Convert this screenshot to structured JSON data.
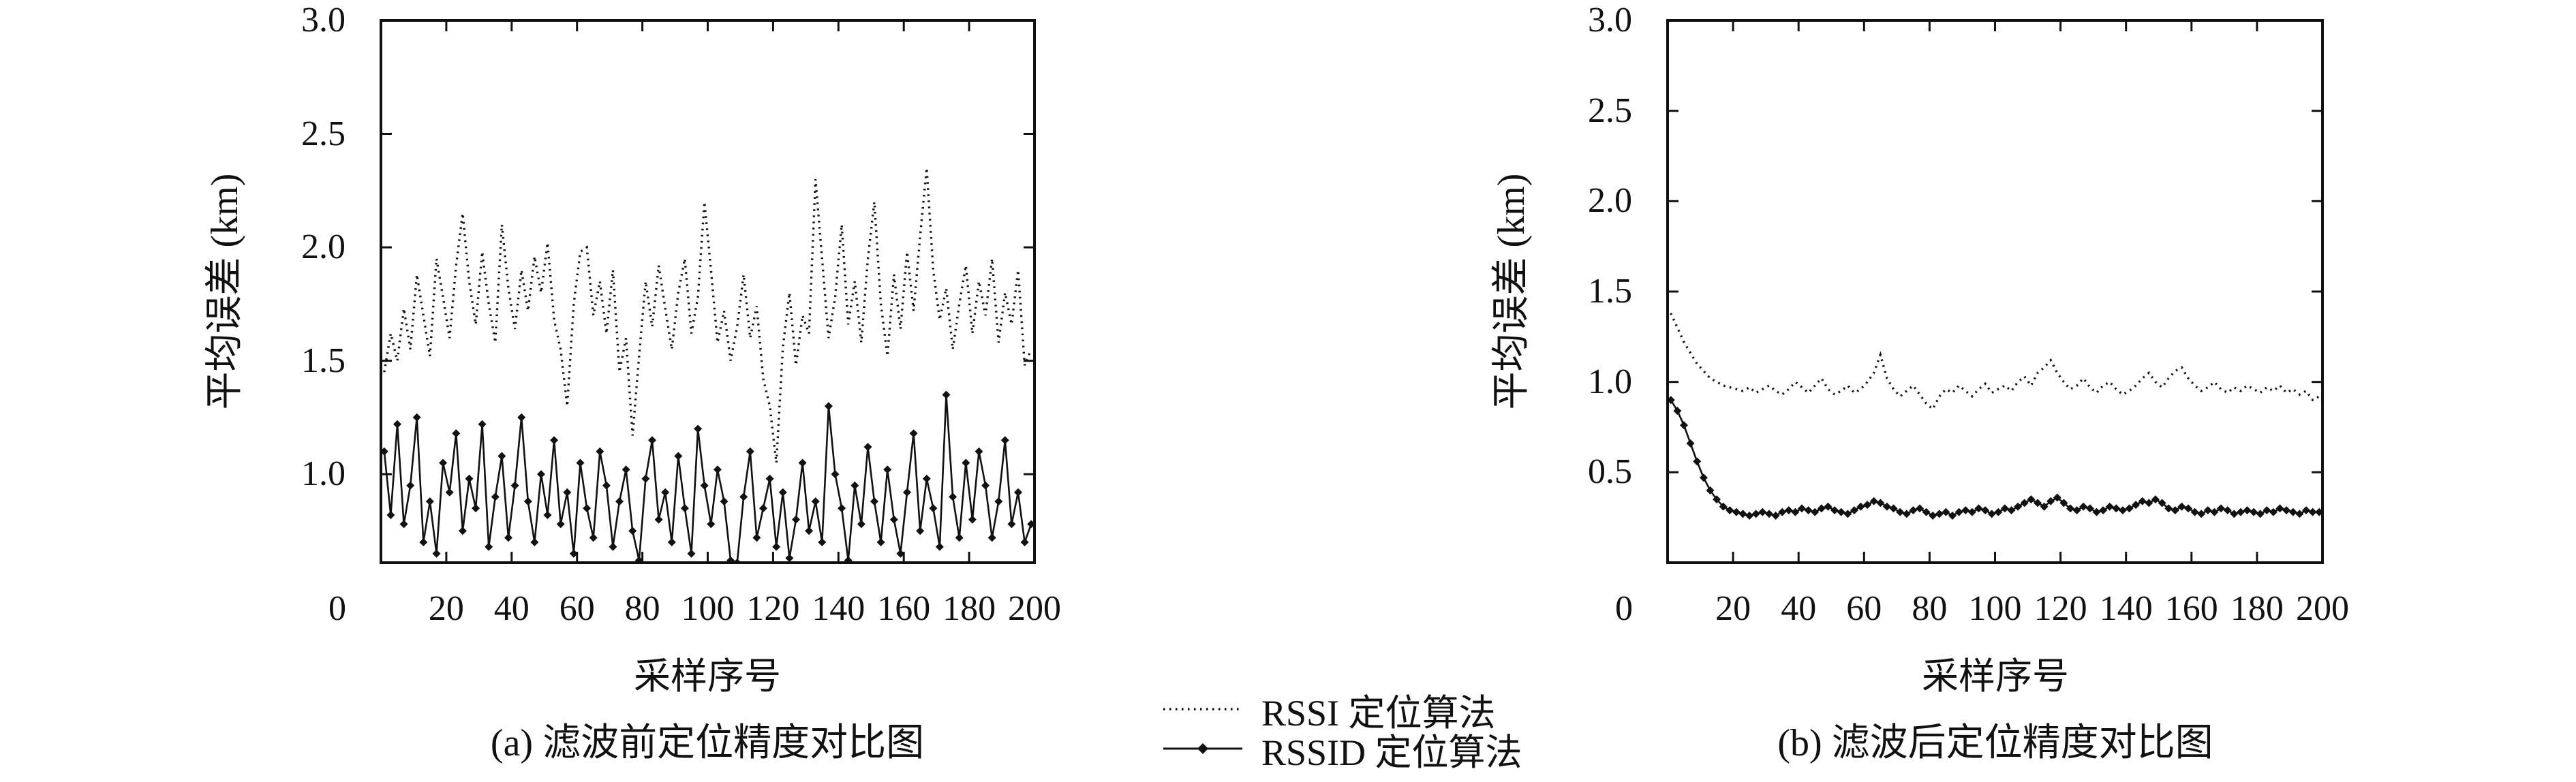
{
  "figure": {
    "background": "#ffffff",
    "line_color": "#111111",
    "legend": [
      {
        "label": "RSSI 定位算法",
        "style": "dotted"
      },
      {
        "label": "RSSID 定位算法",
        "style": "solid-diamond"
      }
    ]
  },
  "chart_data": [
    {
      "type": "line",
      "title": "(a) 滤波前定位精度对比图",
      "xlabel": "采样序号",
      "ylabel": "平均误差 (km)",
      "xlim": [
        0,
        200
      ],
      "ylim": [
        0.61,
        3.0
      ],
      "x_ticks": [
        0,
        20,
        40,
        60,
        80,
        100,
        120,
        140,
        160,
        180,
        200
      ],
      "y_ticks": [
        "1.0",
        "1.5",
        "2.0",
        "2.5",
        "3.0"
      ],
      "grid": false,
      "legend_position": "bottom-center-shared",
      "x_start": 1,
      "x_step": 2,
      "series": [
        {
          "name": "RSSI 定位算法",
          "style": "dotted",
          "marker": "none",
          "values": [
            1.45,
            1.62,
            1.5,
            1.73,
            1.55,
            1.88,
            1.7,
            1.52,
            1.95,
            1.78,
            1.6,
            1.92,
            2.15,
            1.85,
            1.66,
            1.98,
            1.75,
            1.58,
            2.1,
            1.82,
            1.64,
            1.9,
            1.72,
            1.96,
            1.8,
            2.02,
            1.68,
            1.55,
            1.3,
            1.75,
            1.98,
            2.0,
            1.7,
            1.85,
            1.62,
            1.9,
            1.45,
            1.6,
            1.17,
            1.52,
            1.85,
            1.65,
            1.92,
            1.73,
            1.55,
            1.8,
            1.95,
            1.62,
            1.78,
            2.2,
            1.9,
            1.58,
            1.72,
            1.5,
            1.65,
            1.88,
            1.6,
            1.74,
            1.42,
            1.3,
            1.05,
            1.56,
            1.8,
            1.48,
            1.7,
            1.62,
            2.3,
            1.95,
            1.6,
            1.78,
            2.1,
            1.66,
            1.85,
            1.58,
            1.95,
            2.2,
            1.75,
            1.52,
            1.88,
            1.64,
            1.98,
            1.72,
            2.05,
            2.35,
            1.9,
            1.68,
            1.82,
            1.55,
            1.75,
            1.92,
            1.62,
            1.85,
            1.7,
            1.95,
            1.58,
            1.8,
            1.66,
            1.9,
            1.48,
            1.55
          ]
        },
        {
          "name": "RSSID 定位算法",
          "style": "solid",
          "marker": "diamond",
          "values": [
            1.1,
            0.82,
            1.22,
            0.78,
            0.95,
            1.25,
            0.7,
            0.88,
            0.65,
            1.05,
            0.92,
            1.18,
            0.75,
            0.98,
            0.85,
            1.22,
            0.68,
            0.9,
            1.08,
            0.72,
            0.95,
            1.25,
            0.88,
            0.7,
            1.0,
            0.82,
            1.15,
            0.78,
            0.92,
            0.65,
            1.05,
            0.85,
            0.72,
            1.1,
            0.95,
            0.68,
            0.88,
            1.02,
            0.75,
            0.62,
            0.98,
            1.15,
            0.8,
            0.92,
            0.7,
            1.08,
            0.85,
            0.65,
            1.2,
            0.95,
            0.78,
            1.02,
            0.88,
            0.62,
            0.61,
            0.9,
            1.1,
            0.72,
            0.85,
            0.98,
            0.68,
            0.92,
            0.63,
            0.8,
            1.05,
            0.75,
            0.88,
            0.7,
            1.3,
            1.0,
            0.85,
            0.62,
            0.95,
            0.78,
            1.12,
            0.88,
            0.7,
            1.02,
            0.8,
            0.65,
            0.92,
            1.18,
            0.75,
            0.98,
            0.85,
            0.68,
            1.35,
            0.9,
            0.72,
            1.05,
            0.8,
            1.1,
            0.95,
            0.72,
            0.88,
            1.15,
            0.78,
            0.92,
            0.7,
            0.78
          ]
        }
      ]
    },
    {
      "type": "line",
      "title": "(b) 滤波后定位精度对比图",
      "xlabel": "采样序号",
      "ylabel": "平均误差 (km)",
      "xlim": [
        0,
        200
      ],
      "ylim": [
        0.0,
        3.0
      ],
      "x_ticks": [
        0,
        20,
        40,
        60,
        80,
        100,
        120,
        140,
        160,
        180,
        200
      ],
      "y_ticks": [
        "0.5",
        "1.0",
        "1.5",
        "2.0",
        "2.5",
        "3.0"
      ],
      "grid": false,
      "legend_position": "bottom-center-shared",
      "x_start": 1,
      "x_step": 2,
      "series": [
        {
          "name": "RSSI 定位算法",
          "style": "dotted",
          "marker": "none",
          "values": [
            1.38,
            1.3,
            1.22,
            1.16,
            1.1,
            1.06,
            1.02,
            1.0,
            0.98,
            0.97,
            0.96,
            0.95,
            0.97,
            0.94,
            0.96,
            0.98,
            0.95,
            0.93,
            0.96,
            1.0,
            0.97,
            0.94,
            0.98,
            1.02,
            0.96,
            0.93,
            0.95,
            0.98,
            0.94,
            0.96,
            1.0,
            1.05,
            1.15,
            1.02,
            0.96,
            0.92,
            0.95,
            0.98,
            0.93,
            0.88,
            0.85,
            0.92,
            0.96,
            0.94,
            0.98,
            0.95,
            0.92,
            0.96,
            0.99,
            0.94,
            0.96,
            0.98,
            0.95,
            1.0,
            1.03,
            0.98,
            1.05,
            1.08,
            1.12,
            1.05,
            1.0,
            0.96,
            0.98,
            1.02,
            0.97,
            0.94,
            0.98,
            1.0,
            0.96,
            0.93,
            0.95,
            0.98,
            1.02,
            1.05,
            1.0,
            0.97,
            1.02,
            1.06,
            1.08,
            1.02,
            0.98,
            0.95,
            0.97,
            1.0,
            0.96,
            0.94,
            0.97,
            0.95,
            0.98,
            0.96,
            0.94,
            0.97,
            0.95,
            0.98,
            0.94,
            0.96,
            0.93,
            0.95,
            0.9,
            0.92
          ]
        },
        {
          "name": "RSSID 定位算法",
          "style": "solid",
          "marker": "diamond",
          "values": [
            0.9,
            0.84,
            0.76,
            0.66,
            0.56,
            0.47,
            0.4,
            0.35,
            0.31,
            0.29,
            0.28,
            0.27,
            0.26,
            0.27,
            0.28,
            0.27,
            0.26,
            0.28,
            0.29,
            0.28,
            0.3,
            0.29,
            0.28,
            0.3,
            0.31,
            0.29,
            0.28,
            0.27,
            0.29,
            0.31,
            0.32,
            0.34,
            0.33,
            0.31,
            0.3,
            0.28,
            0.27,
            0.29,
            0.3,
            0.28,
            0.26,
            0.27,
            0.28,
            0.26,
            0.28,
            0.29,
            0.28,
            0.3,
            0.29,
            0.27,
            0.28,
            0.3,
            0.29,
            0.31,
            0.33,
            0.35,
            0.33,
            0.31,
            0.34,
            0.36,
            0.33,
            0.3,
            0.29,
            0.31,
            0.3,
            0.28,
            0.29,
            0.31,
            0.3,
            0.29,
            0.3,
            0.32,
            0.34,
            0.33,
            0.35,
            0.33,
            0.3,
            0.29,
            0.31,
            0.3,
            0.28,
            0.27,
            0.29,
            0.28,
            0.3,
            0.29,
            0.27,
            0.28,
            0.29,
            0.28,
            0.27,
            0.29,
            0.28,
            0.3,
            0.29,
            0.28,
            0.27,
            0.29,
            0.28,
            0.28
          ]
        }
      ]
    }
  ]
}
